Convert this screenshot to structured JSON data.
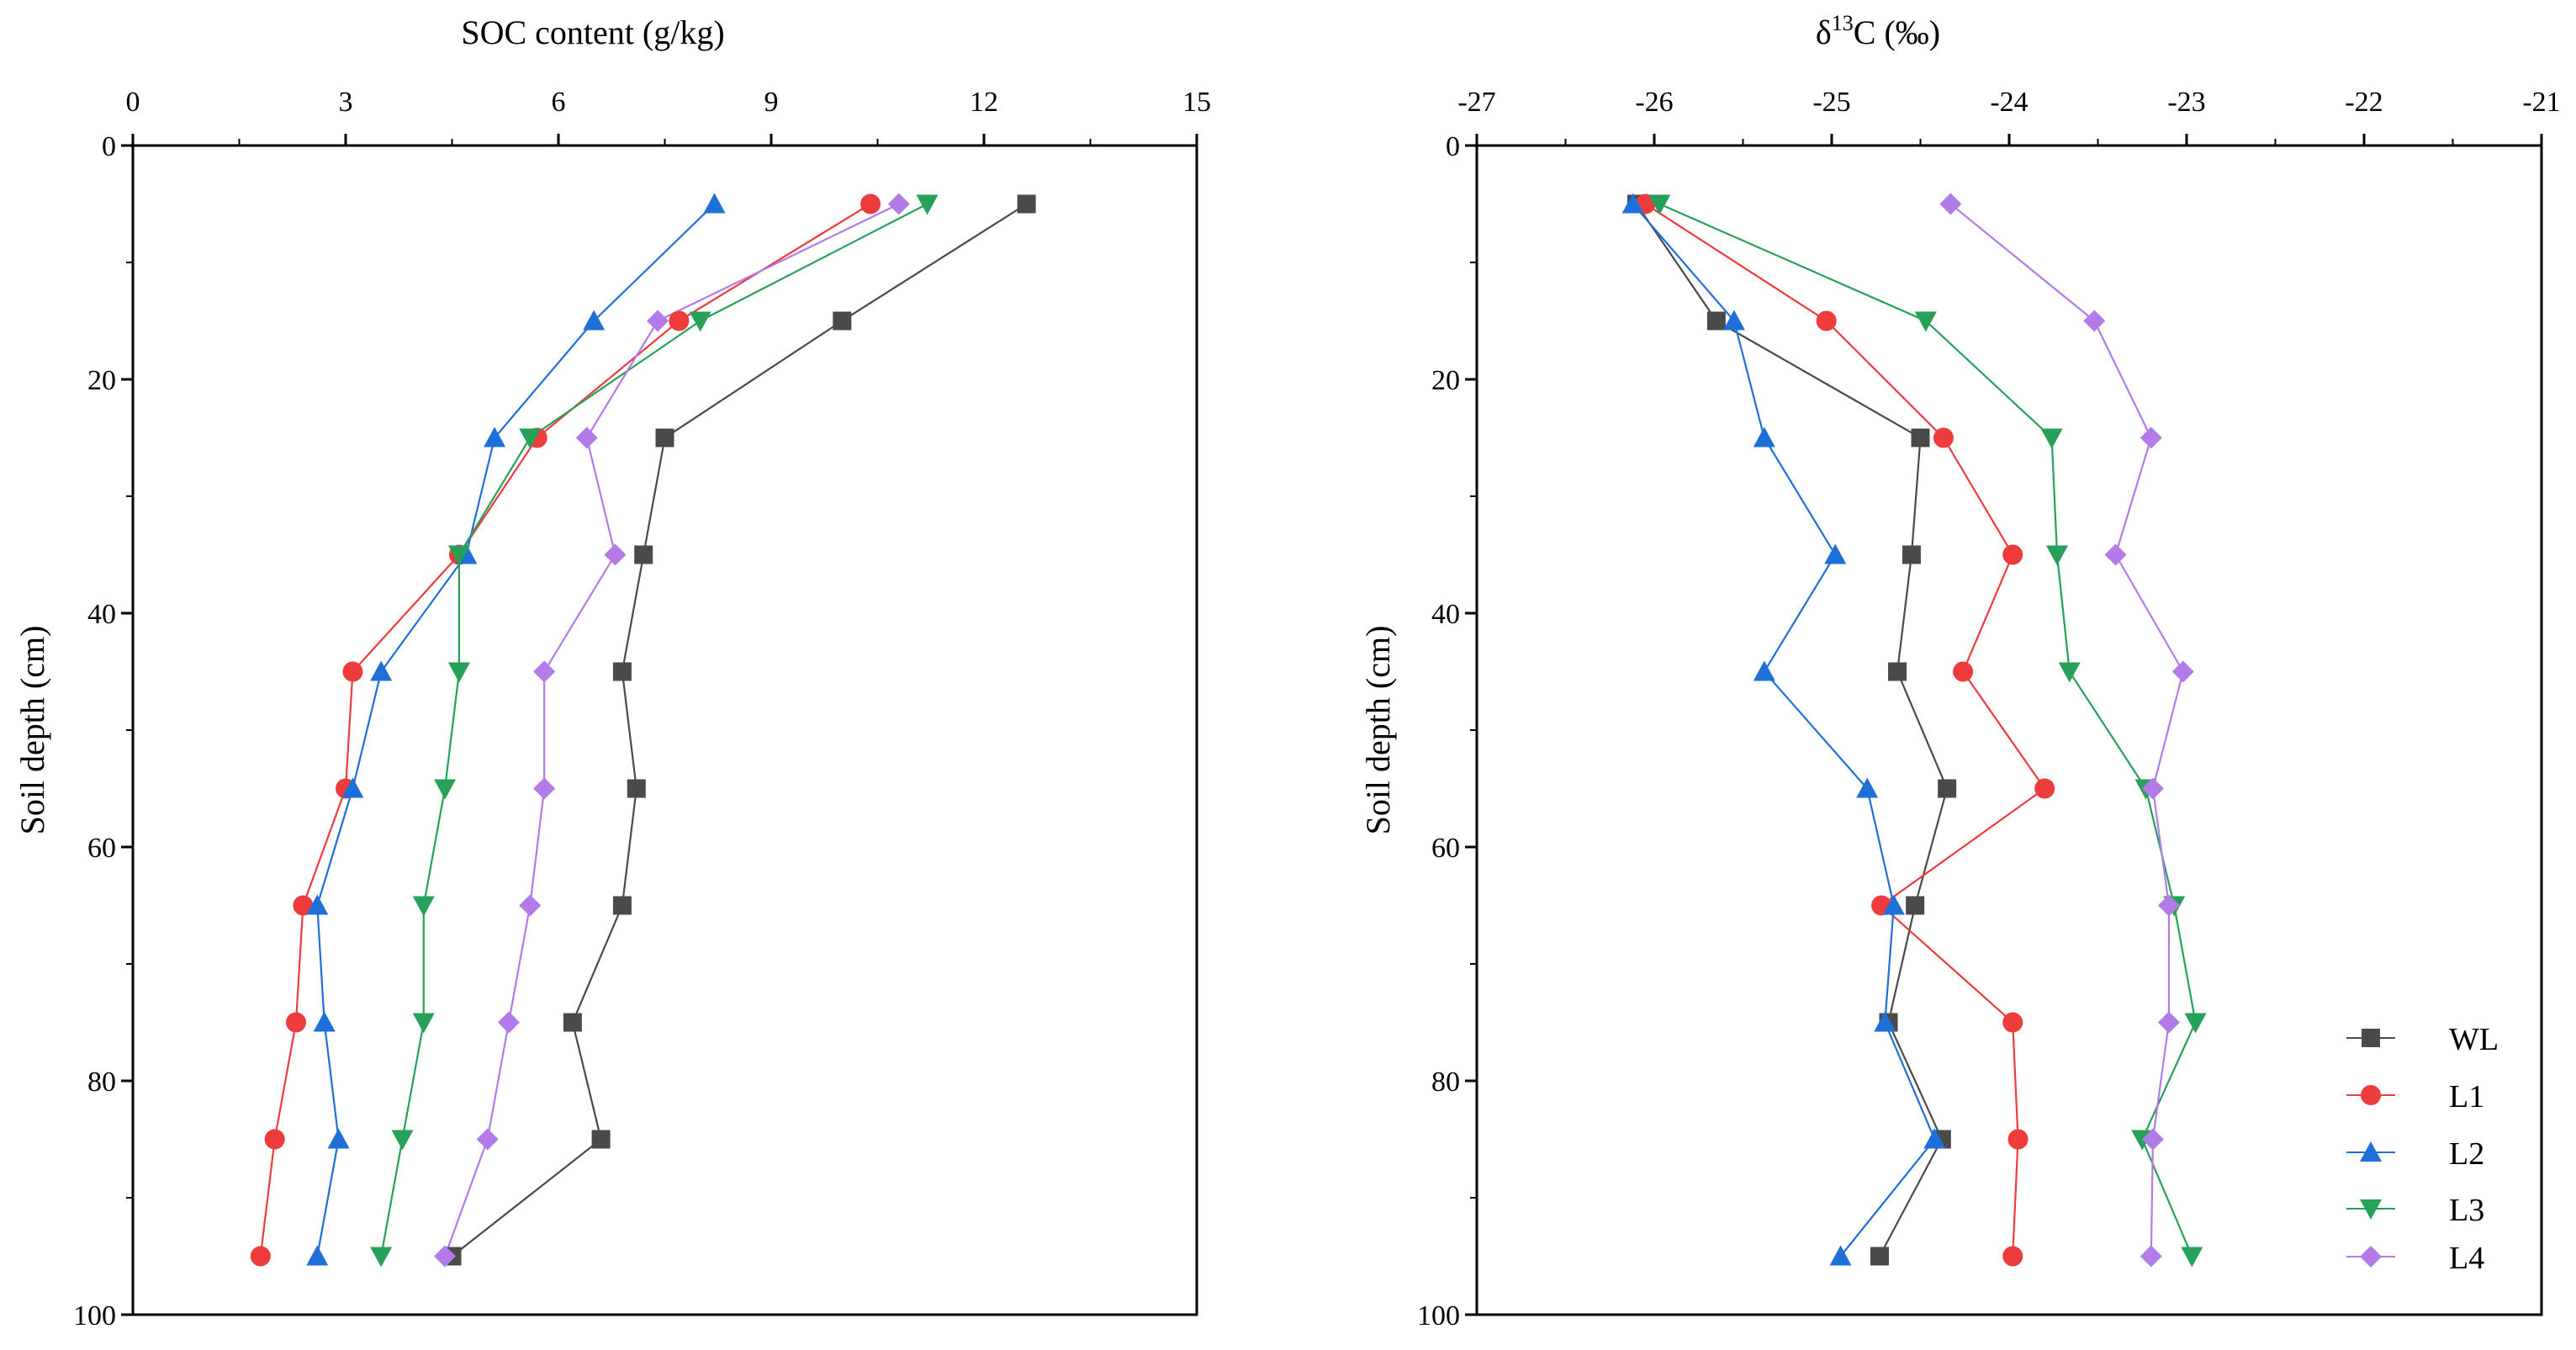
{
  "chart_data": [
    {
      "type": "line",
      "id": "soc",
      "title": "",
      "xlabel": "SOC content (g/kg)",
      "ylabel": "Soil depth (cm)",
      "x_axis_position": "top",
      "y_axis_inverted": true,
      "xlim": [
        0,
        15
      ],
      "ylim": [
        0,
        100
      ],
      "xticks": [
        0,
        3,
        6,
        9,
        12,
        15
      ],
      "xtick_labels": [
        "0",
        "3",
        "6",
        "9",
        "12",
        "15"
      ],
      "yticks": [
        0,
        20,
        40,
        60,
        80,
        100
      ],
      "ytick_labels": [
        "0",
        "20",
        "40",
        "60",
        "80",
        "100"
      ],
      "depths": [
        5,
        15,
        25,
        35,
        45,
        55,
        65,
        75,
        85,
        95
      ],
      "series": [
        {
          "name": "WL",
          "values": [
            12.6,
            10.0,
            7.5,
            7.2,
            6.9,
            7.1,
            6.9,
            6.2,
            6.6,
            4.5
          ]
        },
        {
          "name": "L1",
          "values": [
            10.4,
            7.7,
            5.7,
            4.6,
            3.1,
            3.0,
            2.4,
            2.3,
            2.0,
            1.8
          ]
        },
        {
          "name": "L2",
          "values": [
            8.2,
            6.5,
            5.1,
            4.7,
            3.5,
            3.1,
            2.6,
            2.7,
            2.9,
            2.6
          ]
        },
        {
          "name": "L3",
          "values": [
            11.2,
            8.0,
            5.6,
            4.6,
            4.6,
            4.4,
            4.1,
            4.1,
            3.8,
            3.5
          ]
        },
        {
          "name": "L4",
          "values": [
            10.8,
            7.4,
            6.4,
            6.8,
            5.8,
            5.8,
            5.6,
            5.3,
            5.0,
            4.4
          ]
        }
      ],
      "legend": "none"
    },
    {
      "type": "line",
      "id": "d13c",
      "title": "",
      "xlabel": "δ13C (‰)",
      "xlabel_parts": {
        "base": "δ",
        "sup": "13",
        "rest": "C (‰)"
      },
      "ylabel": "Soil depth (cm)",
      "x_axis_position": "top",
      "y_axis_inverted": true,
      "xlim": [
        -27,
        -21
      ],
      "ylim": [
        0,
        100
      ],
      "xticks": [
        -27,
        -26,
        -25,
        -24,
        -23,
        -22,
        -21
      ],
      "xtick_labels": [
        "-27",
        "-26",
        "-25",
        "-24",
        "-23",
        "-22",
        "-21"
      ],
      "yticks": [
        0,
        20,
        40,
        60,
        80,
        100
      ],
      "ytick_labels": [
        "0",
        "20",
        "40",
        "60",
        "80",
        "100"
      ],
      "depths": [
        5,
        15,
        25,
        35,
        45,
        55,
        65,
        75,
        85,
        95
      ],
      "series": [
        {
          "name": "WL",
          "values": [
            -26.1,
            -25.65,
            -24.5,
            -24.55,
            -24.63,
            -24.35,
            -24.53,
            -24.68,
            -24.38,
            -24.73
          ]
        },
        {
          "name": "L1",
          "values": [
            -26.05,
            -25.03,
            -24.37,
            -23.98,
            -24.26,
            -23.8,
            -24.72,
            -23.98,
            -23.95,
            -23.98
          ]
        },
        {
          "name": "L2",
          "values": [
            -26.12,
            -25.55,
            -25.38,
            -24.98,
            -25.38,
            -24.8,
            -24.65,
            -24.7,
            -24.42,
            -24.95
          ]
        },
        {
          "name": "L3",
          "values": [
            -25.97,
            -24.47,
            -23.76,
            -23.73,
            -23.66,
            -23.23,
            -23.07,
            -22.95,
            -23.25,
            -22.97
          ]
        },
        {
          "name": "L4",
          "values": [
            -24.33,
            -23.52,
            -23.2,
            -23.4,
            -23.02,
            -23.19,
            -23.1,
            -23.1,
            -23.19,
            -23.2
          ]
        }
      ],
      "legend": "bottom-right"
    }
  ],
  "legend": {
    "entries": [
      "WL",
      "L1",
      "L2",
      "L3",
      "L4"
    ]
  },
  "series_styles": {
    "WL": {
      "color": "#4a4a4a",
      "marker": "square"
    },
    "L1": {
      "color": "#ee3b3b",
      "marker": "circle"
    },
    "L2": {
      "color": "#1f6fd8",
      "marker": "triangle-up"
    },
    "L3": {
      "color": "#27a05a",
      "marker": "triangle-down"
    },
    "L4": {
      "color": "#b37be8",
      "marker": "diamond"
    }
  }
}
